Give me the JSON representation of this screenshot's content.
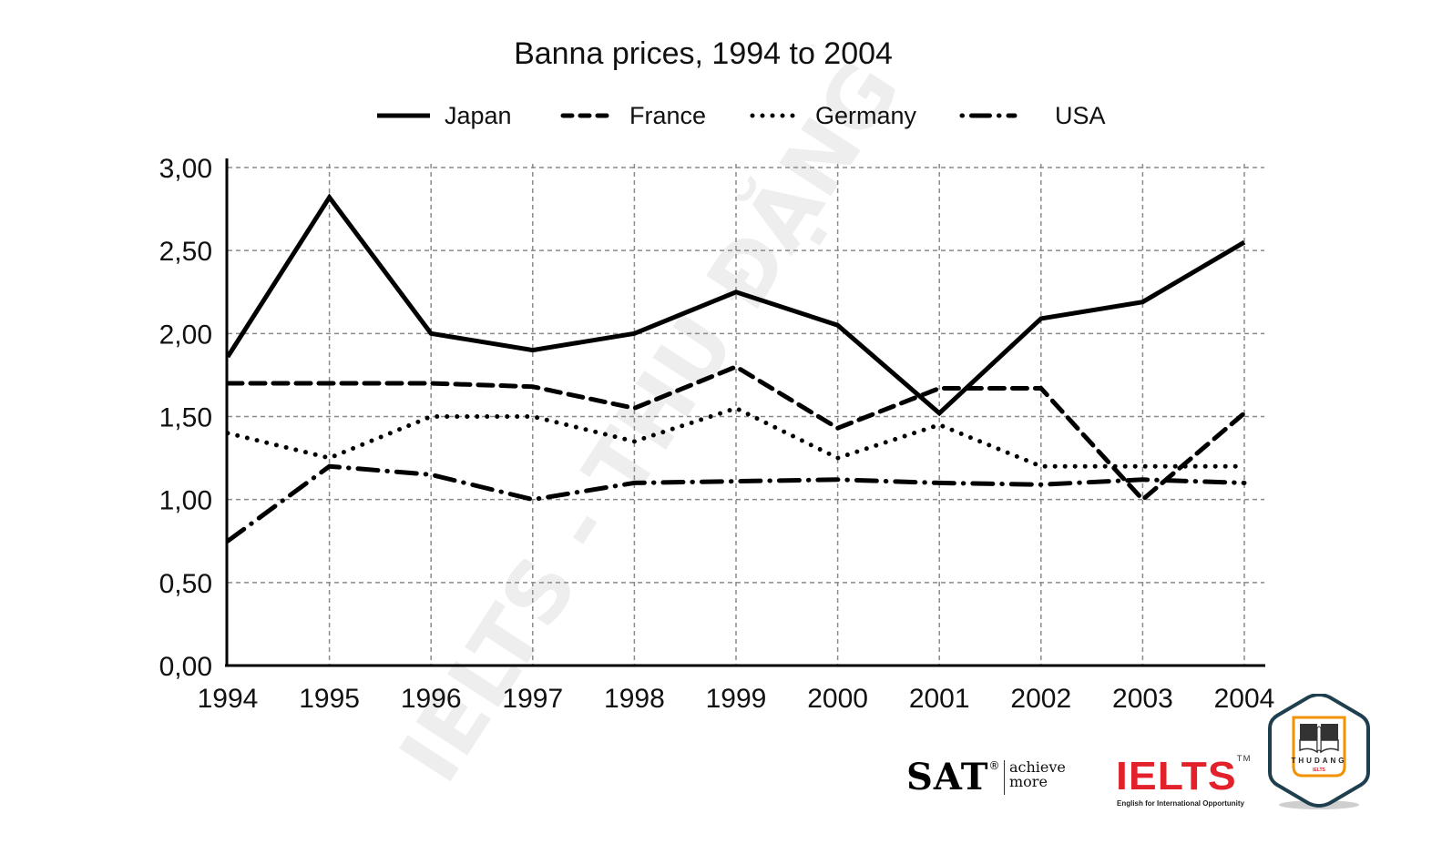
{
  "chart_data": {
    "type": "line",
    "title": "Banna prices, 1994 to 2004",
    "xlabel": "",
    "ylabel": "",
    "categories": [
      "1994",
      "1995",
      "1996",
      "1997",
      "1998",
      "1999",
      "2000",
      "2001",
      "2002",
      "2003",
      "2004"
    ],
    "ylim": [
      0,
      3
    ],
    "yticks": [
      0,
      0.5,
      1,
      1.5,
      2,
      2.5,
      3
    ],
    "ytick_labels": [
      "0,00",
      "0,50",
      "1,00",
      "1,50",
      "2,00",
      "2,50",
      "3,00"
    ],
    "grid": true,
    "legend_position": "top-center",
    "series": [
      {
        "name": "Japan",
        "style": "solid",
        "values": [
          1.86,
          2.82,
          2.0,
          1.9,
          2.0,
          2.25,
          2.05,
          1.52,
          2.09,
          2.19,
          2.55
        ]
      },
      {
        "name": "France",
        "style": "dashed",
        "values": [
          1.7,
          1.7,
          1.7,
          1.68,
          1.55,
          1.8,
          1.43,
          1.67,
          1.67,
          1.0,
          1.52
        ]
      },
      {
        "name": "Germany",
        "style": "dotted",
        "values": [
          1.4,
          1.25,
          1.5,
          1.5,
          1.35,
          1.55,
          1.25,
          1.45,
          1.2,
          1.2,
          1.2
        ]
      },
      {
        "name": "USA",
        "style": "dash-dot",
        "values": [
          0.75,
          1.2,
          1.15,
          1.0,
          1.1,
          1.11,
          1.12,
          1.1,
          1.09,
          1.12,
          1.1
        ]
      }
    ]
  },
  "watermark": "IELTS - THU ĐẶNG",
  "logos": {
    "sat": "SAT",
    "sat_mark": "®",
    "sat_tagline_1": "achieve",
    "sat_tagline_2": "more",
    "ielts": "IELTS",
    "ielts_mark": "TM",
    "ielts_tagline": "English for International Opportunity",
    "badge_name": "THUDANG",
    "badge_sub": "IELTS"
  },
  "colors": {
    "line": "#000000",
    "grid": "#8a8a8a",
    "ielts_red": "#e3212b",
    "badge_border": "#1f3f4f",
    "badge_accent": "#f39200"
  }
}
